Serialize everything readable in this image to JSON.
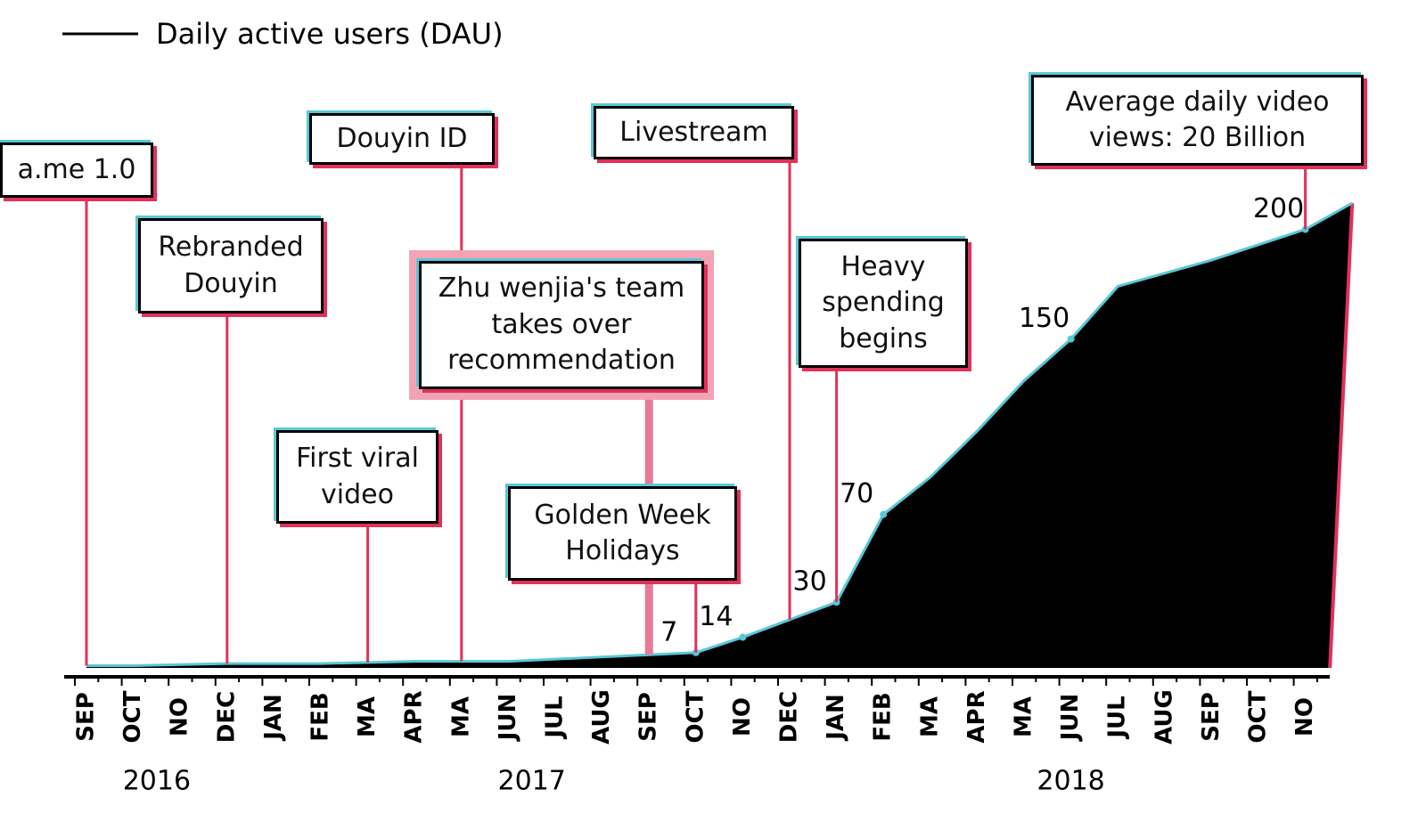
{
  "chart_data": {
    "type": "area",
    "legend": "Daily active users (DAU)",
    "categories": [
      "SEP",
      "OCT",
      "NO",
      "DEC",
      "JAN",
      "FEB",
      "MA",
      "APR",
      "MA",
      "JUN",
      "JUL",
      "AUG",
      "SEP",
      "OCT",
      "NO",
      "DEC",
      "JAN",
      "FEB",
      "MA",
      "APR",
      "MA",
      "JUN",
      "JUL",
      "AUG",
      "SEP",
      "OCT",
      "NO",
      null
    ],
    "values": [
      1,
      1,
      1.5,
      2,
      2,
      2,
      2.5,
      3,
      3,
      3,
      4,
      5,
      6,
      7,
      14,
      22,
      30,
      70,
      87,
      108,
      131,
      150,
      174,
      180,
      186,
      193,
      200,
      212
    ],
    "value_labels": [
      null,
      null,
      null,
      null,
      null,
      null,
      null,
      null,
      null,
      null,
      null,
      null,
      null,
      "7",
      "14",
      null,
      "30",
      "70",
      null,
      null,
      null,
      "150",
      null,
      null,
      null,
      null,
      "200",
      null
    ],
    "years": [
      "2016",
      "2017",
      "2018"
    ],
    "color": "#000000",
    "line_color": "#59c7d6",
    "pointer_color": "#e0315a",
    "annotations": [
      {
        "text": "a.me 1.0",
        "at": 0
      },
      {
        "text": "Rebranded Douyin",
        "at": 3
      },
      {
        "text": "First viral video",
        "at": 6
      },
      {
        "text": "Douyin ID",
        "at": 8
      },
      {
        "text": "Zhu wenjia's team takes over recommendation",
        "at": 12,
        "highlight": true
      },
      {
        "text": "Golden Week Holidays",
        "at": 13
      },
      {
        "text": "Livestream",
        "at": 15
      },
      {
        "text": "Heavy spending begins",
        "at": 16
      },
      {
        "text": "Average daily video views: 20 Billion",
        "at": 26
      }
    ]
  }
}
